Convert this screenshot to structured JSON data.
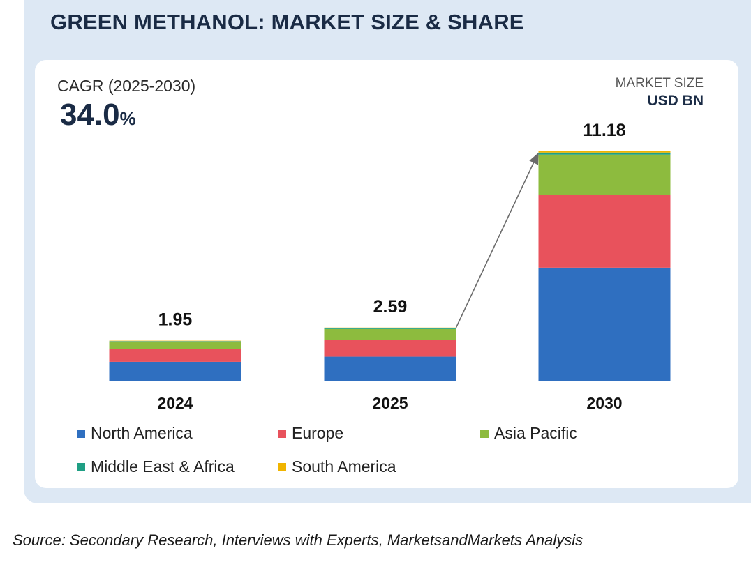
{
  "header": {
    "title": "GREEN METHANOL: MARKET SIZE & SHARE"
  },
  "cagr": {
    "label": "CAGR (2025-2030)",
    "value": "34.0",
    "unit": "%"
  },
  "market_size": {
    "label": "MARKET SIZE",
    "unit": "USD BN"
  },
  "source": "Source: Secondary Research, Interviews with Experts, MarketsandMarkets Analysis",
  "colors": {
    "North America": "#2f6fc0",
    "Europe": "#e8525c",
    "Asia Pacific": "#8dbb3e",
    "Middle East & Africa": "#1f9f84",
    "South America": "#f0b400"
  },
  "chart_data": {
    "type": "bar",
    "stacked": true,
    "title": "GREEN METHANOL: MARKET SIZE & SHARE",
    "ylabel": "USD BN",
    "categories": [
      "2024",
      "2025",
      "2030"
    ],
    "totals": [
      1.95,
      2.59,
      11.18
    ],
    "total_labels": [
      "1.95",
      "2.59",
      "11.18"
    ],
    "series": [
      {
        "name": "North America",
        "values": [
          0.92,
          1.17,
          5.51
        ]
      },
      {
        "name": "Europe",
        "values": [
          0.62,
          0.82,
          3.53
        ]
      },
      {
        "name": "Asia Pacific",
        "values": [
          0.37,
          0.53,
          1.98
        ]
      },
      {
        "name": "Middle East & Africa",
        "values": [
          0.02,
          0.04,
          0.1
        ]
      },
      {
        "name": "South America",
        "values": [
          0.02,
          0.03,
          0.06
        ]
      }
    ],
    "ylim": [
      0,
      11.18
    ],
    "grid": false,
    "legend_position": "bottom",
    "annotation": "arrow from 2025 to 2030"
  }
}
